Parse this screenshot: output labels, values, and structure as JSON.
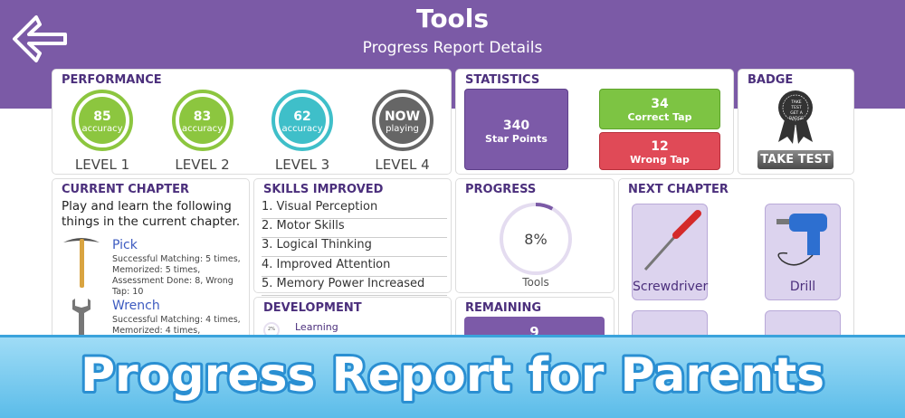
{
  "header": {
    "title": "Tools",
    "subtitle": "Progress Report Details"
  },
  "performance": {
    "title": "PERFORMANCE",
    "levels": [
      {
        "value": "85",
        "caption": "accuracy",
        "label": "LEVEL 1"
      },
      {
        "value": "83",
        "caption": "accuracy",
        "label": "LEVEL 2"
      },
      {
        "value": "62",
        "caption": "accuracy",
        "label": "LEVEL 3"
      },
      {
        "value": "NOW",
        "caption": "playing",
        "label": "LEVEL 4"
      }
    ]
  },
  "statistics": {
    "title": "STATISTICS",
    "star_points": {
      "value": "340",
      "label": "Star Points"
    },
    "correct_tap": {
      "value": "34",
      "label": "Correct Tap"
    },
    "wrong_tap": {
      "value": "12",
      "label": "Wrong Tap"
    }
  },
  "badge": {
    "title": "BADGE",
    "badge_text": "TAKE TEST GET A BADGE",
    "button": "TAKE TEST"
  },
  "current_chapter": {
    "title": "CURRENT CHAPTER",
    "intro": "Play and learn the following things in the current chapter.",
    "items": [
      {
        "name": "Pick",
        "details": "Successful Matching: 5 times, Memorized: 5 times, Assessment Done: 8, Wrong Tap: 10"
      },
      {
        "name": "Wrench",
        "details": "Successful Matching: 4 times, Memorized: 4 times, Assessment"
      }
    ]
  },
  "skills": {
    "title": "SKILLS IMPROVED",
    "items": [
      "1. Visual Perception",
      "2. Motor Skills",
      "3. Logical Thinking",
      "4. Improved Attention",
      "5. Memory Power Increased"
    ]
  },
  "development": {
    "title": "DEVELOPMENT",
    "items": [
      {
        "percent": "2%",
        "label": "Learning"
      }
    ]
  },
  "progress": {
    "title": "PROGRESS",
    "value": 8,
    "label": "8%",
    "caption": "Tools"
  },
  "remaining": {
    "title": "REMAINING",
    "value": "9"
  },
  "next_chapter": {
    "title": "NEXT CHAPTER",
    "items": [
      "Screwdriver",
      "Drill"
    ]
  },
  "banner": {
    "text": "Progress Report for Parents"
  }
}
